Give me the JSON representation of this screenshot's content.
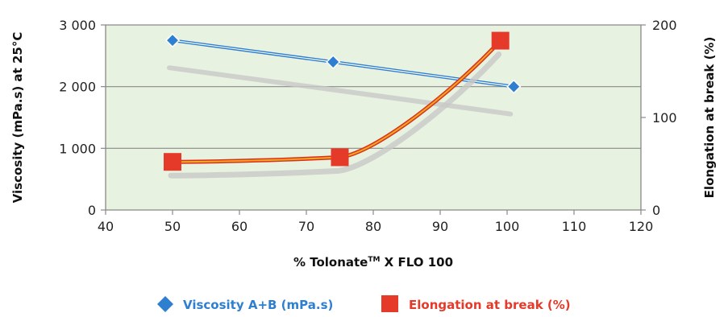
{
  "chart_data": {
    "type": "line",
    "xlabel": "% Tolonate",
    "xlabel_tm": "TM",
    "xlabel_suffix": " X FLO 100",
    "ylabel_left": "Viscosity (mPa.s) at 25°C",
    "ylabel_right": "Elongation at break (%)",
    "xlim": [
      40,
      120
    ],
    "ylim_left": [
      0,
      3000
    ],
    "ylim_right": [
      0,
      200
    ],
    "x_ticks": [
      "40",
      "50",
      "60",
      "70",
      "80",
      "90",
      "100",
      "110",
      "120"
    ],
    "y_left_ticks": [
      "0",
      "1 000",
      "2 000",
      "3 000"
    ],
    "y_right_ticks": [
      "0",
      "100",
      "200"
    ],
    "grid": "horizontal",
    "background_color": "#e8f2e0",
    "legend_position": "bottom",
    "series": [
      {
        "name": "Viscosity A+B (mPa.s)",
        "axis": "left",
        "marker": "diamond",
        "color": "#2e7fcf",
        "x": [
          50,
          74,
          101
        ],
        "y": [
          2750,
          2400,
          2000
        ]
      },
      {
        "name": "Elongation at break (%)",
        "axis": "right",
        "marker": "square",
        "color": "#e53a2a",
        "x": [
          50,
          75,
          99
        ],
        "y": [
          52,
          57,
          183
        ]
      }
    ]
  }
}
